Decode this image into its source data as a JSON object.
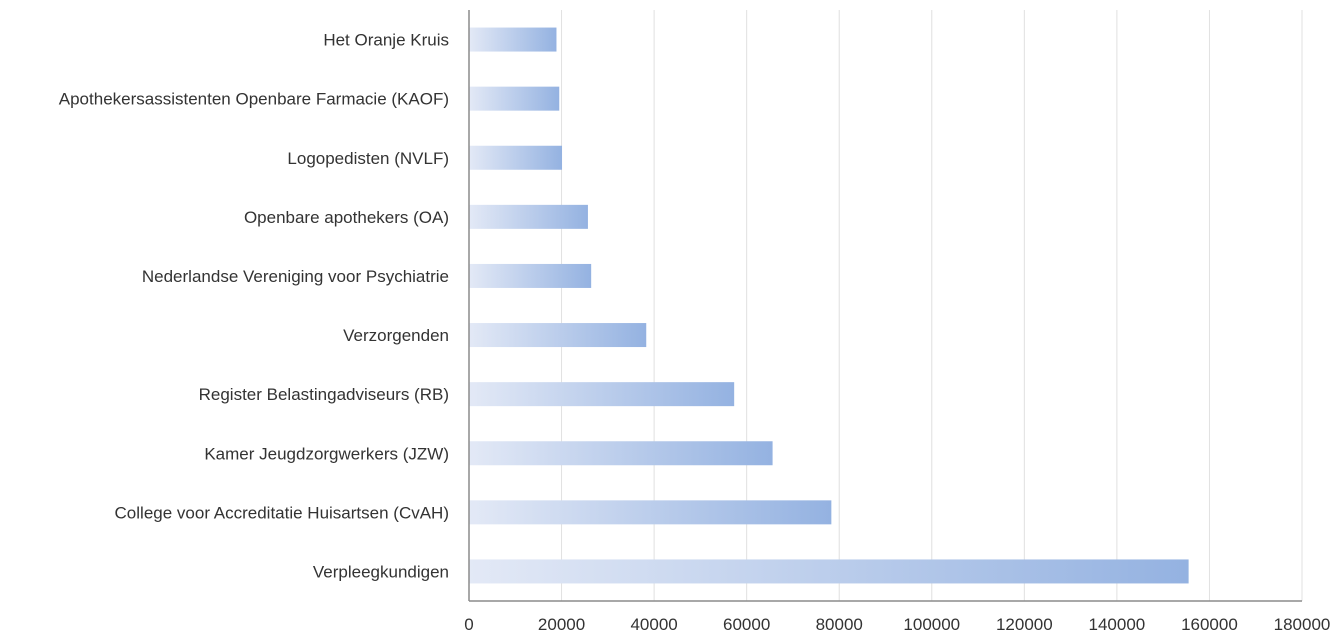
{
  "chart_data": {
    "type": "bar",
    "orientation": "horizontal",
    "title": "",
    "xlabel": "",
    "ylabel": "",
    "categories": [
      "Verpleegkundigen",
      "College voor Accreditatie Huisartsen (CvAH)",
      "Kamer Jeugdzorgwerkers (JZW)",
      "Register Belastingadviseurs (RB)",
      "Verzorgenden",
      "Nederlandse Vereniging voor Psychiatrie",
      "Openbare apothekers (OA)",
      "Logopedisten (NVLF)",
      "Apothekersassistenten Openbare Farmacie (KAOF)",
      "Het Oranje Kruis"
    ],
    "values": [
      155500,
      78300,
      65600,
      57300,
      38300,
      26400,
      25700,
      20100,
      19500,
      18900
    ],
    "xlim": [
      0,
      180000
    ],
    "xticks": [
      "0",
      "20000",
      "40000",
      "60000",
      "80000",
      "100000",
      "120000",
      "140000",
      "160000",
      "180000"
    ],
    "grid": "vertical",
    "legend": "none",
    "colors": {
      "bar_start": "#e3e9f6",
      "bar_end": "#94b2e1",
      "grid": "#e0e0e0",
      "axis": "#8c8c8c",
      "text": "#333333"
    }
  }
}
